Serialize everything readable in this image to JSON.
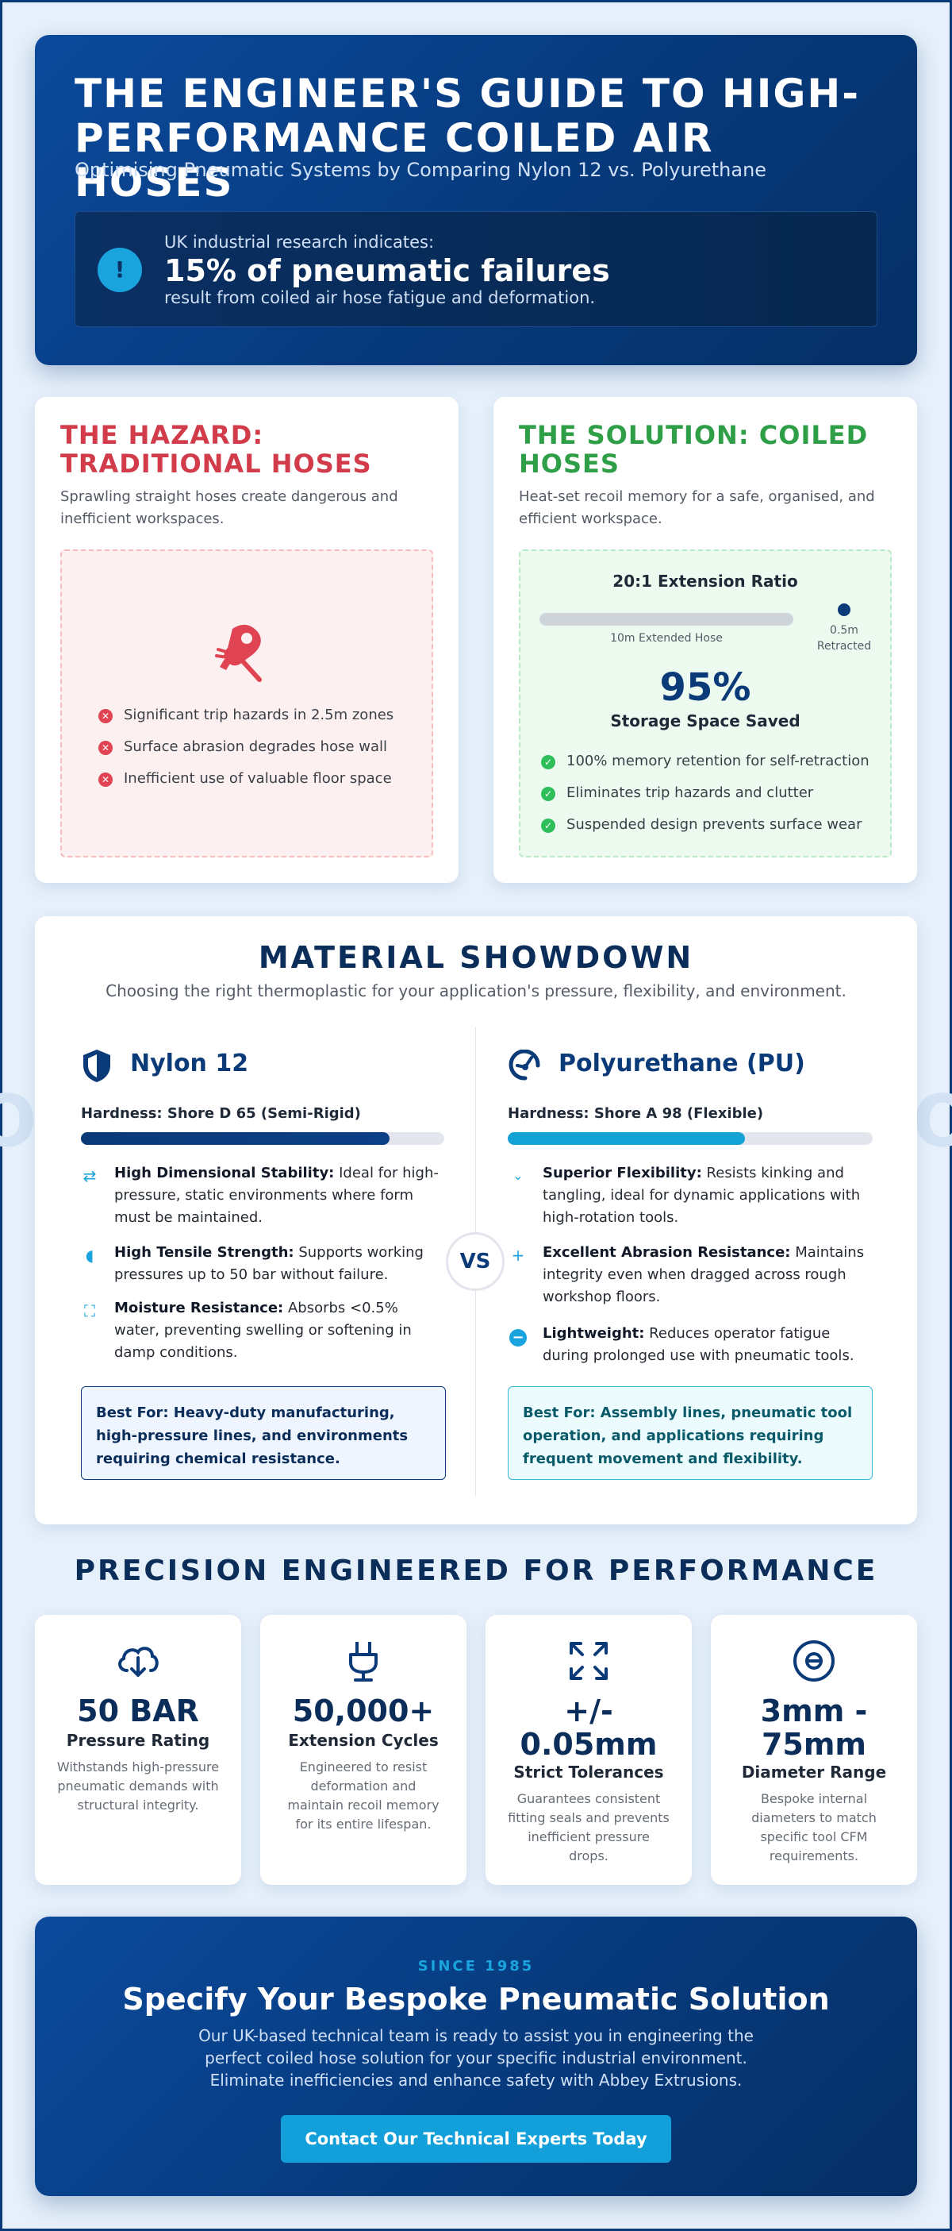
{
  "hero": {
    "title": "The Engineer's Guide to High-Performance Coiled Air Hoses",
    "subtitle": "Optimising Pneumatic Systems by Comparing Nylon 12 vs. Polyurethane",
    "stat_lead": "UK industrial research indicates:",
    "stat_big": "15% of pneumatic failures",
    "stat_tail": "result from coiled air hose fatigue and deformation."
  },
  "hazard": {
    "title": "The Hazard: Traditional Hoses",
    "desc": "Sprawling straight hoses create dangerous and inefficient workspaces.",
    "items": [
      "Significant trip hazards in 2.5m zones",
      "Surface abrasion degrades hose wall",
      "Inefficient use of valuable floor space"
    ]
  },
  "solution": {
    "title": "The Solution: Coiled Hoses",
    "desc": "Heat-set recoil memory for a safe, organised, and efficient workspace.",
    "ratio_title": "20:1 Extension Ratio",
    "extended_label": "10m Extended Hose",
    "retracted_value": "0.5m",
    "retracted_label": "Retracted",
    "storage_value": "95%",
    "storage_label": "Storage Space Saved",
    "items": [
      "100% memory retention for self-retraction",
      "Eliminates trip hazards and clutter",
      "Suspended design prevents surface wear"
    ]
  },
  "materials": {
    "title": "Material Showdown",
    "subtitle": "Choosing the right thermoplastic for your application's pressure, flexibility, and environment.",
    "vs": "VS",
    "nylon": {
      "name": "Nylon 12",
      "hardness": "Hardness: Shore D 65 (Semi-Rigid)",
      "hardness_fill_pct": 85,
      "features": [
        {
          "bold": "High Dimensional Stability:",
          "text": " Ideal for high-pressure, static environments where form must be maintained."
        },
        {
          "bold": "High Tensile Strength:",
          "text": " Supports working pressures up to 50 bar without failure."
        },
        {
          "bold": "Moisture Resistance:",
          "text": " Absorbs <0.5% water, preventing swelling or softening in damp conditions."
        }
      ],
      "best_for": "Best For: Heavy-duty manufacturing, high-pressure lines, and environments requiring chemical resistance."
    },
    "pu": {
      "name": "Polyurethane (PU)",
      "hardness": "Hardness: Shore A 98 (Flexible)",
      "hardness_fill_pct": 65,
      "features": [
        {
          "bold": "Superior Flexibility:",
          "text": " Resists kinking and tangling, ideal for dynamic applications with high-rotation tools."
        },
        {
          "bold": "Excellent Abrasion Resistance:",
          "text": " Maintains integrity even when dragged across rough workshop floors."
        },
        {
          "bold": "Lightweight:",
          "text": " Reduces operator fatigue during prolonged use with pneumatic tools."
        }
      ],
      "best_for": "Best For: Assembly lines, pneumatic tool operation, and applications requiring frequent movement and flexibility."
    }
  },
  "performance": {
    "title": "Precision Engineered for Performance",
    "cards": [
      {
        "value": "50 BAR",
        "label": "Pressure Rating",
        "desc": "Withstands high-pressure pneumatic demands with structural integrity."
      },
      {
        "value": "50,000+",
        "label": "Extension Cycles",
        "desc": "Engineered to resist deformation and maintain recoil memory for its entire lifespan."
      },
      {
        "value": "+/- 0.05mm",
        "label": "Strict Tolerances",
        "desc": "Guarantees consistent fitting seals and prevents inefficient pressure drops."
      },
      {
        "value": "3mm - 75mm",
        "label": "Diameter Range",
        "desc": "Bespoke internal diameters to match specific tool CFM requirements."
      }
    ]
  },
  "cta": {
    "kicker": "SINCE 1985",
    "title": "Specify Your Bespoke Pneumatic Solution",
    "body": "Our UK-based technical team is ready to assist you in engineering the perfect coiled hose solution for your specific industrial environment. Eliminate inefficiencies and enhance safety with Abbey Extrusions.",
    "button": "Contact Our Technical Experts Today"
  },
  "colors": {
    "navy": "#0b3a78",
    "accent": "#1aa4dd",
    "hazard": "#d23b4a",
    "solution": "#2e9e47"
  }
}
